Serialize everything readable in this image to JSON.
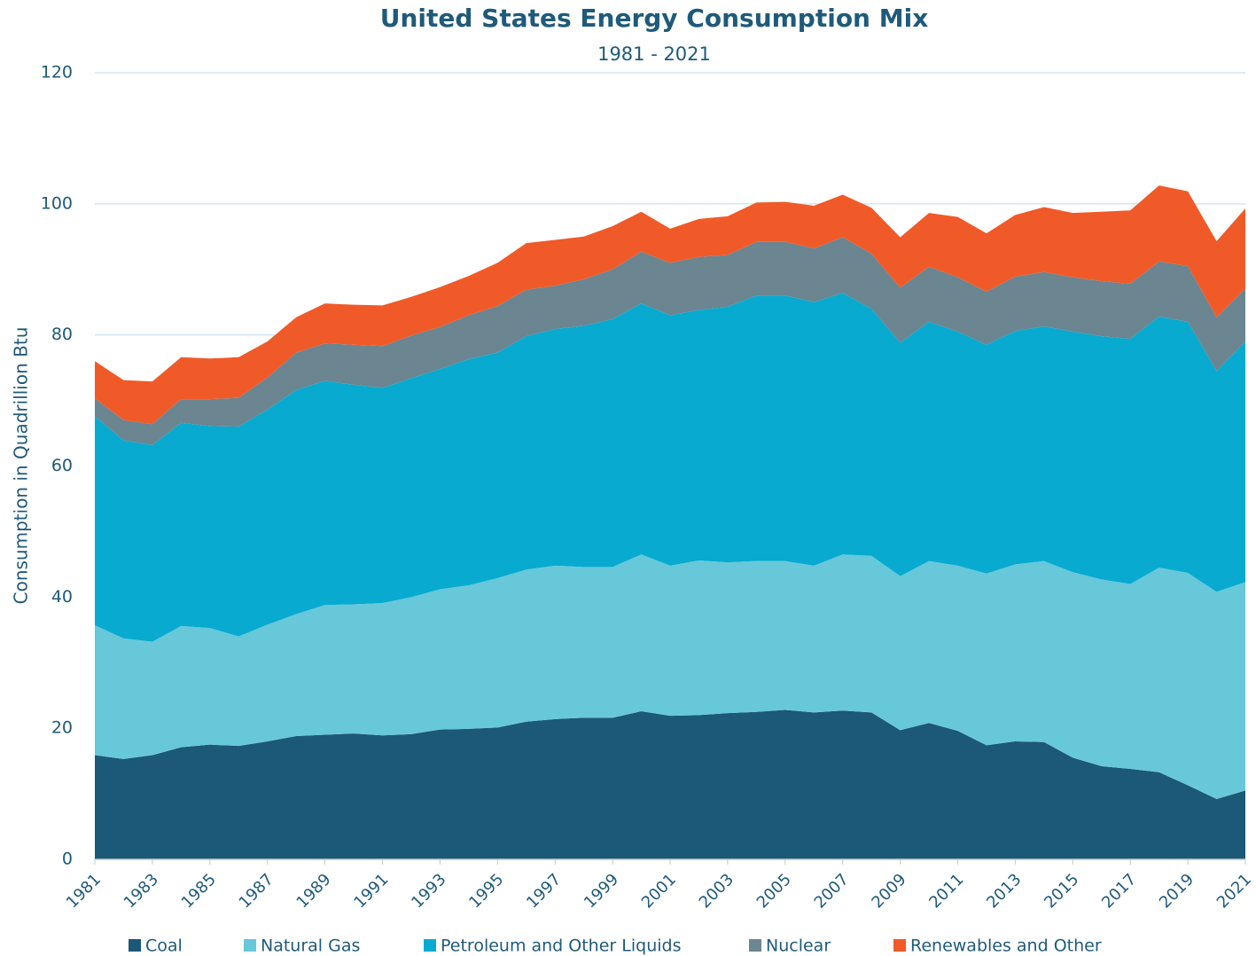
{
  "chart_data": {
    "type": "stacked_area",
    "title": "United States Energy Consumption Mix",
    "subtitle": "1981 - 2021",
    "y_label": "Consumption in Quadrillion Btu",
    "x": [
      1981,
      1982,
      1983,
      1984,
      1985,
      1986,
      1987,
      1988,
      1989,
      1990,
      1991,
      1992,
      1993,
      1994,
      1995,
      1996,
      1997,
      1998,
      1999,
      2000,
      2001,
      2002,
      2003,
      2004,
      2005,
      2006,
      2007,
      2008,
      2009,
      2010,
      2011,
      2012,
      2013,
      2014,
      2015,
      2016,
      2017,
      2018,
      2019,
      2020,
      2021
    ],
    "xlim": [
      1981,
      2021
    ],
    "xticks": [
      1981,
      1983,
      1985,
      1987,
      1989,
      1991,
      1993,
      1995,
      1997,
      1999,
      2001,
      2003,
      2005,
      2007,
      2009,
      2011,
      2013,
      2015,
      2017,
      2019,
      2021
    ],
    "ylim": [
      0,
      120
    ],
    "yticks": [
      0,
      20,
      40,
      60,
      80,
      100,
      120
    ],
    "grid": true,
    "legend": "bottom",
    "series": [
      {
        "name": "Coal",
        "color": "#1c5877",
        "values": [
          15.9,
          15.3,
          15.9,
          17.1,
          17.5,
          17.3,
          18.0,
          18.8,
          19.0,
          19.2,
          18.9,
          19.1,
          19.8,
          19.9,
          20.1,
          21.0,
          21.4,
          21.6,
          21.6,
          22.6,
          21.9,
          22.0,
          22.3,
          22.5,
          22.8,
          22.4,
          22.7,
          22.4,
          19.7,
          20.8,
          19.6,
          17.4,
          18.0,
          17.9,
          15.5,
          14.2,
          13.8,
          13.3,
          11.3,
          9.2,
          10.5
        ]
      },
      {
        "name": "Natural Gas",
        "color": "#67c8da",
        "values": [
          19.8,
          18.4,
          17.3,
          18.5,
          17.8,
          16.7,
          17.8,
          18.6,
          19.8,
          19.7,
          20.2,
          20.9,
          21.4,
          21.9,
          22.8,
          23.2,
          23.4,
          23.0,
          23.0,
          23.9,
          22.9,
          23.6,
          23.0,
          23.0,
          22.7,
          22.4,
          23.8,
          23.9,
          23.5,
          24.7,
          25.2,
          26.2,
          27.0,
          27.6,
          28.3,
          28.5,
          28.2,
          31.2,
          32.4,
          31.6,
          31.8
        ]
      },
      {
        "name": "Petroleum and Other Liquids",
        "color": "#08aad0",
        "values": [
          31.9,
          30.2,
          30.0,
          31.0,
          30.8,
          32.0,
          32.8,
          34.2,
          34.2,
          33.5,
          32.8,
          33.4,
          33.6,
          34.5,
          34.4,
          35.6,
          36.1,
          36.8,
          37.8,
          38.3,
          38.2,
          38.2,
          39.0,
          40.5,
          40.5,
          40.2,
          39.9,
          37.7,
          35.6,
          36.5,
          35.7,
          34.9,
          35.6,
          35.8,
          36.7,
          37.1,
          37.4,
          38.3,
          38.3,
          33.7,
          36.7
        ]
      },
      {
        "name": "Nuclear",
        "color": "#6b8591",
        "values": [
          2.7,
          3.1,
          3.2,
          3.6,
          4.1,
          4.4,
          4.9,
          5.7,
          5.7,
          6.1,
          6.4,
          6.5,
          6.4,
          6.7,
          7.1,
          7.1,
          6.6,
          7.1,
          7.6,
          7.9,
          8.0,
          8.1,
          7.9,
          8.2,
          8.2,
          8.2,
          8.5,
          8.4,
          8.4,
          8.4,
          8.3,
          8.1,
          8.3,
          8.3,
          8.3,
          8.4,
          8.4,
          8.4,
          8.5,
          8.2,
          8.1
        ]
      },
      {
        "name": "Renewables and Other",
        "color": "#f05a28",
        "values": [
          5.7,
          6.1,
          6.5,
          6.4,
          6.2,
          6.2,
          5.5,
          5.4,
          6.1,
          6.1,
          6.2,
          5.9,
          6.1,
          6.0,
          6.6,
          7.1,
          7.0,
          6.5,
          6.6,
          6.1,
          5.2,
          5.8,
          5.9,
          6.0,
          6.1,
          6.5,
          6.5,
          7.0,
          7.7,
          8.2,
          9.2,
          8.9,
          9.4,
          9.9,
          9.8,
          10.6,
          11.2,
          11.6,
          11.4,
          11.6,
          12.2
        ]
      }
    ]
  }
}
